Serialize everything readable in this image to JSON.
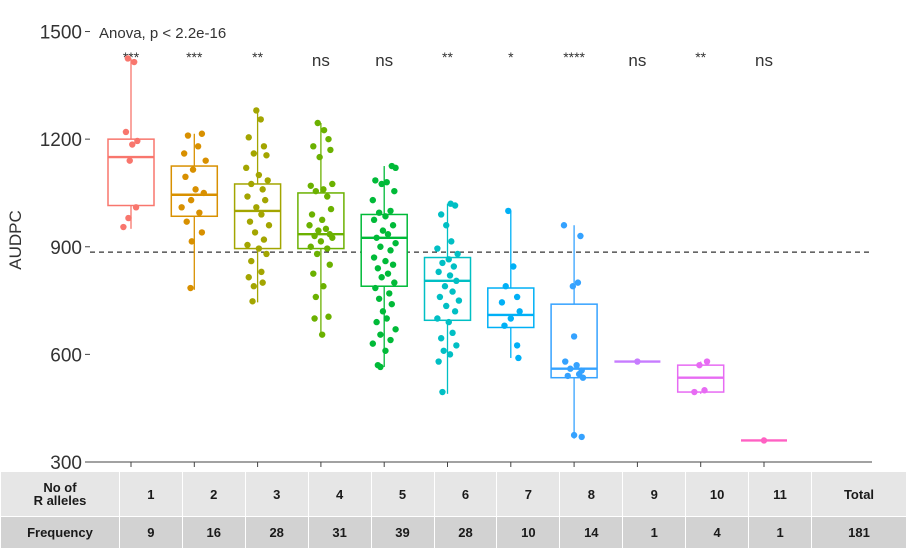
{
  "chart_data": {
    "type": "box",
    "annotation": "Anova, p < 2.2e-16",
    "ylabel": "AUDPC",
    "ylim": [
      300,
      1560
    ],
    "yticks": [
      300,
      600,
      900,
      1200,
      1500
    ],
    "reference_line": 885,
    "significance": [
      "***",
      "***",
      "**",
      "ns",
      "ns",
      "**",
      "*",
      "****",
      "ns",
      "**",
      "ns"
    ],
    "groups": [
      {
        "label": "1",
        "color": "#f8766d",
        "min": 950,
        "q1": 1015,
        "median": 1150,
        "q3": 1200,
        "max": 1425,
        "points": [
          [
            -0.05,
            1425
          ],
          [
            0.05,
            1415
          ],
          [
            -0.08,
            1220
          ],
          [
            0.1,
            1195
          ],
          [
            0.02,
            1185
          ],
          [
            -0.02,
            1140
          ],
          [
            0.08,
            1010
          ],
          [
            -0.04,
            980
          ],
          [
            -0.12,
            955
          ]
        ]
      },
      {
        "label": "2",
        "color": "#d89000",
        "min": 780,
        "q1": 985,
        "median": 1045,
        "q3": 1125,
        "max": 1215,
        "points": [
          [
            -0.1,
            1210
          ],
          [
            0.12,
            1215
          ],
          [
            0.06,
            1180
          ],
          [
            -0.16,
            1160
          ],
          [
            0.18,
            1140
          ],
          [
            -0.02,
            1115
          ],
          [
            -0.14,
            1095
          ],
          [
            0.02,
            1060
          ],
          [
            0.15,
            1050
          ],
          [
            -0.05,
            1030
          ],
          [
            -0.2,
            1010
          ],
          [
            0.08,
            995
          ],
          [
            -0.12,
            970
          ],
          [
            0.12,
            940
          ],
          [
            -0.04,
            915
          ],
          [
            -0.06,
            785
          ]
        ]
      },
      {
        "label": "3",
        "color": "#a3a500",
        "min": 745,
        "q1": 895,
        "median": 1000,
        "q3": 1075,
        "max": 1280,
        "points": [
          [
            -0.02,
            1280
          ],
          [
            0.05,
            1255
          ],
          [
            -0.14,
            1205
          ],
          [
            0.1,
            1180
          ],
          [
            -0.06,
            1160
          ],
          [
            0.14,
            1155
          ],
          [
            -0.18,
            1120
          ],
          [
            0.02,
            1100
          ],
          [
            0.16,
            1085
          ],
          [
            -0.1,
            1075
          ],
          [
            0.08,
            1060
          ],
          [
            -0.16,
            1040
          ],
          [
            0.12,
            1030
          ],
          [
            -0.02,
            1010
          ],
          [
            0.06,
            990
          ],
          [
            -0.12,
            970
          ],
          [
            0.18,
            960
          ],
          [
            -0.04,
            940
          ],
          [
            0.1,
            920
          ],
          [
            -0.16,
            905
          ],
          [
            0.02,
            895
          ],
          [
            0.14,
            880
          ],
          [
            -0.1,
            860
          ],
          [
            0.06,
            830
          ],
          [
            -0.14,
            815
          ],
          [
            0.08,
            800
          ],
          [
            -0.06,
            790
          ],
          [
            -0.08,
            748
          ]
        ]
      },
      {
        "label": "4",
        "color": "#6bb100",
        "min": 655,
        "q1": 895,
        "median": 935,
        "q3": 1050,
        "max": 1245,
        "points": [
          [
            -0.05,
            1245
          ],
          [
            0.05,
            1225
          ],
          [
            0.12,
            1200
          ],
          [
            -0.12,
            1180
          ],
          [
            0.15,
            1170
          ],
          [
            -0.02,
            1150
          ],
          [
            0.18,
            1075
          ],
          [
            -0.16,
            1070
          ],
          [
            0.04,
            1060
          ],
          [
            -0.08,
            1055
          ],
          [
            0.1,
            1040
          ],
          [
            0.16,
            1005
          ],
          [
            -0.14,
            990
          ],
          [
            0.02,
            975
          ],
          [
            -0.18,
            960
          ],
          [
            0.08,
            950
          ],
          [
            -0.04,
            945
          ],
          [
            0.14,
            935
          ],
          [
            -0.1,
            930
          ],
          [
            0.18,
            925
          ],
          [
            0.0,
            915
          ],
          [
            -0.16,
            900
          ],
          [
            0.1,
            895
          ],
          [
            -0.06,
            880
          ],
          [
            0.14,
            850
          ],
          [
            -0.12,
            825
          ],
          [
            0.04,
            790
          ],
          [
            -0.08,
            760
          ],
          [
            0.12,
            705
          ],
          [
            -0.1,
            700
          ],
          [
            0.02,
            655
          ]
        ]
      },
      {
        "label": "5",
        "color": "#00ba38",
        "min": 565,
        "q1": 790,
        "median": 925,
        "q3": 990,
        "max": 1125,
        "points": [
          [
            0.12,
            1125
          ],
          [
            0.18,
            1120
          ],
          [
            -0.14,
            1085
          ],
          [
            0.04,
            1080
          ],
          [
            -0.04,
            1075
          ],
          [
            0.16,
            1055
          ],
          [
            -0.18,
            1030
          ],
          [
            0.1,
            1000
          ],
          [
            -0.08,
            995
          ],
          [
            0.02,
            985
          ],
          [
            -0.16,
            975
          ],
          [
            0.14,
            960
          ],
          [
            -0.02,
            945
          ],
          [
            0.06,
            935
          ],
          [
            -0.12,
            925
          ],
          [
            0.18,
            910
          ],
          [
            -0.06,
            900
          ],
          [
            0.1,
            890
          ],
          [
            -0.16,
            870
          ],
          [
            0.02,
            860
          ],
          [
            0.14,
            850
          ],
          [
            -0.1,
            840
          ],
          [
            0.06,
            825
          ],
          [
            -0.04,
            815
          ],
          [
            0.16,
            800
          ],
          [
            -0.14,
            785
          ],
          [
            0.08,
            770
          ],
          [
            -0.08,
            755
          ],
          [
            0.12,
            740
          ],
          [
            -0.02,
            720
          ],
          [
            0.04,
            700
          ],
          [
            -0.12,
            690
          ],
          [
            0.18,
            670
          ],
          [
            -0.06,
            655
          ],
          [
            0.1,
            640
          ],
          [
            -0.18,
            630
          ],
          [
            0.02,
            610
          ],
          [
            -0.1,
            570
          ],
          [
            -0.06,
            565
          ]
        ]
      },
      {
        "label": "6",
        "color": "#00bfc4",
        "min": 490,
        "q1": 695,
        "median": 805,
        "q3": 870,
        "max": 1020,
        "points": [
          [
            0.05,
            1020
          ],
          [
            0.12,
            1015
          ],
          [
            -0.1,
            990
          ],
          [
            -0.02,
            960
          ],
          [
            0.06,
            915
          ],
          [
            -0.16,
            895
          ],
          [
            0.16,
            880
          ],
          [
            0.02,
            865
          ],
          [
            -0.08,
            855
          ],
          [
            0.1,
            845
          ],
          [
            -0.14,
            830
          ],
          [
            0.04,
            820
          ],
          [
            0.14,
            805
          ],
          [
            -0.04,
            790
          ],
          [
            0.08,
            775
          ],
          [
            -0.12,
            760
          ],
          [
            0.18,
            750
          ],
          [
            -0.02,
            735
          ],
          [
            0.12,
            720
          ],
          [
            -0.16,
            700
          ],
          [
            0.02,
            690
          ],
          [
            0.08,
            660
          ],
          [
            -0.1,
            645
          ],
          [
            0.14,
            625
          ],
          [
            -0.06,
            610
          ],
          [
            0.04,
            600
          ],
          [
            -0.14,
            580
          ],
          [
            -0.08,
            495
          ]
        ]
      },
      {
        "label": "7",
        "color": "#00b0f6",
        "min": 590,
        "q1": 675,
        "median": 710,
        "q3": 785,
        "max": 1000,
        "points": [
          [
            -0.04,
            1000
          ],
          [
            0.04,
            845
          ],
          [
            -0.08,
            790
          ],
          [
            0.1,
            760
          ],
          [
            -0.14,
            745
          ],
          [
            0.14,
            720
          ],
          [
            0.0,
            700
          ],
          [
            -0.1,
            680
          ],
          [
            0.1,
            625
          ],
          [
            0.12,
            590
          ]
        ]
      },
      {
        "label": "8",
        "color": "#35a2ff",
        "min": 365,
        "q1": 535,
        "median": 560,
        "q3": 740,
        "max": 960,
        "points": [
          [
            -0.16,
            960
          ],
          [
            0.1,
            930
          ],
          [
            0.06,
            800
          ],
          [
            -0.02,
            790
          ],
          [
            0.0,
            650
          ],
          [
            -0.14,
            580
          ],
          [
            0.04,
            570
          ],
          [
            -0.06,
            560
          ],
          [
            0.12,
            555
          ],
          [
            0.08,
            545
          ],
          [
            -0.1,
            540
          ],
          [
            0.14,
            535
          ],
          [
            0.0,
            375
          ],
          [
            0.12,
            370
          ]
        ]
      },
      {
        "label": "9",
        "color": "#c77cff",
        "min": 580,
        "q1": 580,
        "median": 580,
        "q3": 580,
        "max": 580,
        "points": [
          [
            0.0,
            580
          ]
        ]
      },
      {
        "label": "10",
        "color": "#e76bf3",
        "min": 490,
        "q1": 495,
        "median": 535,
        "q3": 570,
        "max": 580,
        "points": [
          [
            0.1,
            580
          ],
          [
            -0.02,
            570
          ],
          [
            -0.1,
            495
          ],
          [
            0.06,
            500
          ]
        ]
      },
      {
        "label": "11",
        "color": "#ff61c3",
        "min": 360,
        "q1": 360,
        "median": 360,
        "q3": 360,
        "max": 360,
        "points": [
          [
            0.0,
            360
          ]
        ]
      }
    ]
  },
  "table": {
    "row1_label_line1": "No of",
    "row1_label_line2": "R alleles",
    "row2_label": "Frequency",
    "alleles": [
      "1",
      "2",
      "3",
      "4",
      "5",
      "6",
      "7",
      "8",
      "9",
      "10",
      "11",
      "Total"
    ],
    "frequency": [
      "9",
      "16",
      "28",
      "31",
      "39",
      "28",
      "10",
      "14",
      "1",
      "4",
      "1",
      "181"
    ]
  }
}
